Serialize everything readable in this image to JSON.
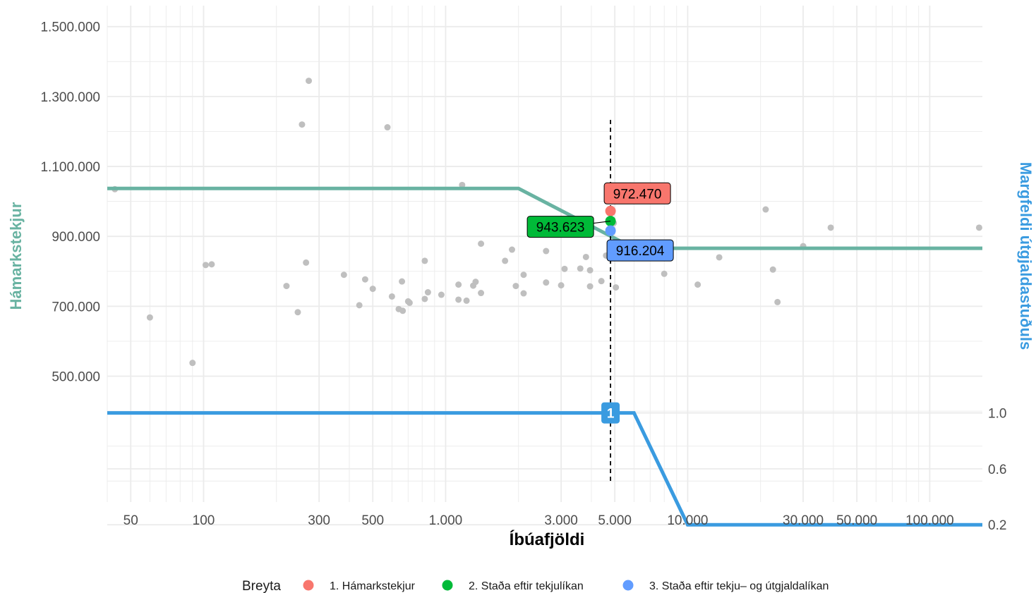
{
  "chart_data": {
    "type": "scatter",
    "title": "",
    "xlabel": "Íbúafjöldi",
    "ylabel": "Hámarkstekjur",
    "y2label": "Margfeldi útgjaldastuðuls",
    "x_scale": "log",
    "xlim": [
      40,
      165000
    ],
    "ylim": [
      140000,
      1560000
    ],
    "x_ticks": [
      50,
      100,
      300,
      500,
      1000,
      3000,
      5000,
      10000,
      30000,
      50000,
      100000
    ],
    "x_tick_labels": [
      "50",
      "100",
      "300",
      "500",
      "1.000",
      "3.000",
      "5.000",
      "10.000",
      "30.000",
      "50.000",
      "100.000"
    ],
    "y_ticks": [
      500000,
      700000,
      900000,
      1100000,
      1300000,
      1500000
    ],
    "y_tick_labels": [
      "500.000",
      "700.000",
      "900.000",
      "1.100.000",
      "1.300.000",
      "1.500.000"
    ],
    "y2_ticks": [
      1.0,
      0.6,
      0.2
    ],
    "y2_tick_labels": [
      "1.0",
      "0.6",
      "0.2"
    ],
    "y2_mapping": {
      "value_at_1": 395000,
      "value_at_0_2": 75000
    },
    "grid": true,
    "legend_position": "bottom",
    "legend_title": "Breyta",
    "colors": {
      "points": "#bfbfbf",
      "income_line": "#69b3a2",
      "multiplier_line": "#3a9be0",
      "vline": "#000000",
      "grid": "#ebebeb",
      "ylabel": "#69b3a2",
      "y2label": "#3a9be0"
    },
    "scatter_points": [
      [
        43,
        1035000
      ],
      [
        60,
        668000
      ],
      [
        90,
        538000
      ],
      [
        102,
        818000
      ],
      [
        108,
        820000
      ],
      [
        220,
        758000
      ],
      [
        245,
        683000
      ],
      [
        255,
        1220000
      ],
      [
        265,
        825000
      ],
      [
        272,
        1345000
      ],
      [
        380,
        790000
      ],
      [
        440,
        703000
      ],
      [
        465,
        777000
      ],
      [
        500,
        750000
      ],
      [
        575,
        1212000
      ],
      [
        600,
        728000
      ],
      [
        640,
        692000
      ],
      [
        660,
        771000
      ],
      [
        665,
        687000
      ],
      [
        700,
        714000
      ],
      [
        710,
        710000
      ],
      [
        820,
        830000
      ],
      [
        820,
        721000
      ],
      [
        845,
        740000
      ],
      [
        960,
        733000
      ],
      [
        1130,
        762000
      ],
      [
        1130,
        719000
      ],
      [
        1170,
        1047000
      ],
      [
        1220,
        716000
      ],
      [
        1300,
        759000
      ],
      [
        1330,
        770000
      ],
      [
        1400,
        879000
      ],
      [
        1400,
        738000
      ],
      [
        1760,
        830000
      ],
      [
        1880,
        862000
      ],
      [
        1950,
        758000
      ],
      [
        2100,
        790000
      ],
      [
        2100,
        737000
      ],
      [
        2600,
        858000
      ],
      [
        2600,
        768000
      ],
      [
        3000,
        760000
      ],
      [
        3100,
        807000
      ],
      [
        3600,
        808000
      ],
      [
        3800,
        841000
      ],
      [
        3950,
        757000
      ],
      [
        3950,
        803000
      ],
      [
        4400,
        772000
      ],
      [
        4600,
        845000
      ],
      [
        4950,
        938000
      ],
      [
        5050,
        754000
      ],
      [
        8000,
        793000
      ],
      [
        11000,
        762000
      ],
      [
        13500,
        840000
      ],
      [
        21000,
        977000
      ],
      [
        22500,
        805000
      ],
      [
        23500,
        712000
      ],
      [
        30000,
        872000
      ],
      [
        39000,
        925000
      ],
      [
        160000,
        925000
      ]
    ],
    "series": [
      {
        "name": "Hámarkstekjur",
        "axis": "left",
        "x": [
          40,
          2000,
          6000,
          165000
        ],
        "y": [
          1037000,
          1037000,
          866000,
          866000
        ]
      },
      {
        "name": "Margfeldi útgjaldastuðuls",
        "axis": "right",
        "x": [
          40,
          6000,
          10000,
          165000
        ],
        "y": [
          1.0,
          1.0,
          0.2,
          0.2
        ]
      }
    ],
    "vline_x": 4800,
    "highlight_points": [
      {
        "name": "1. Hámarkstekjur",
        "x": 4800,
        "y": 972470,
        "label": "972.470",
        "color": "#f8766d",
        "label_pos": "above"
      },
      {
        "name": "2. Staða eftir tekjulíkan",
        "x": 4800,
        "y": 943623,
        "label": "943.623",
        "color": "#00ba38",
        "label_pos": "left"
      },
      {
        "name": "3. Staða eftir tekju- og útgjaldalíkan",
        "x": 4800,
        "y": 916204,
        "label": "916.204",
        "color": "#619cff",
        "label_pos": "below"
      }
    ],
    "step_marker": {
      "x": 4800,
      "y2": 1.0,
      "label": "1"
    },
    "legend_items": [
      {
        "label": "1. Hámarkstekjur",
        "color": "#f8766d"
      },
      {
        "label": "2. Staða eftir tekjulíkan",
        "color": "#00ba38"
      },
      {
        "label": "3. Staða eftir tekju‒ og útgjaldalíkan",
        "color": "#619cff"
      }
    ]
  }
}
